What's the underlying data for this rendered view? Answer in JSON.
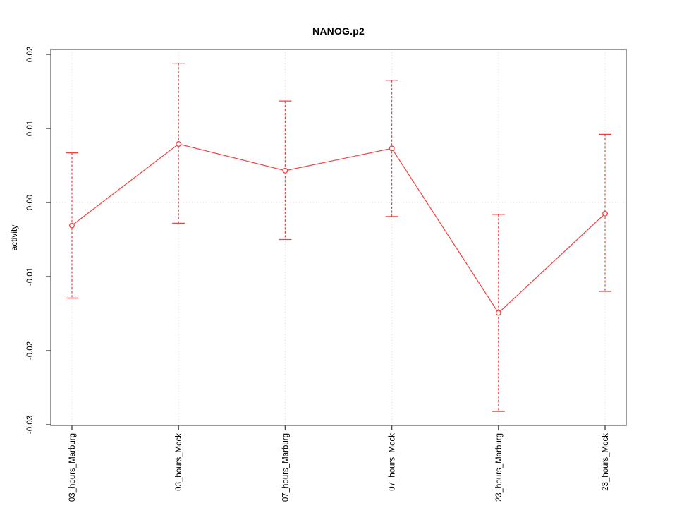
{
  "chart_data": {
    "type": "line",
    "title": "NANOG.p2",
    "xlabel": "",
    "ylabel": "activity",
    "categories": [
      "03_hours_Marburg",
      "03_hours_Mock",
      "07_hours_Marburg",
      "07_hours_Mock",
      "23_hours_Marburg",
      "23_hours_Mock"
    ],
    "series": [
      {
        "name": "activity",
        "values": [
          -0.0031,
          0.0079,
          0.0043,
          0.0073,
          -0.0149,
          -0.0015
        ],
        "error_low": [
          -0.0129,
          -0.0028,
          -0.005,
          -0.0019,
          -0.0282,
          -0.012
        ],
        "error_high": [
          0.0067,
          0.0188,
          0.0137,
          0.0165,
          -0.0016,
          0.0092
        ]
      }
    ],
    "ylim": [
      -0.03,
      0.02
    ],
    "yticks": [
      -0.03,
      -0.02,
      -0.01,
      0,
      0.01,
      0.02
    ],
    "ytick_labels": [
      "-0.03",
      "-0.02",
      "-0.01",
      "0.00",
      "0.01",
      "0.02"
    ],
    "grid_horizontal_at": [
      0
    ],
    "grid_vertical": "at each category",
    "grid_style": "dotted",
    "legend": "none",
    "marker": "open-circle",
    "error_bar_line_style": "dashed"
  },
  "colors": {
    "series_line": "#f44141",
    "marker_fill": "#ffffff",
    "grid": "#d7d7d7",
    "plot_border": "#828282",
    "tick": "#4a4a4a",
    "text": "#000000",
    "background": "#ffffff"
  }
}
